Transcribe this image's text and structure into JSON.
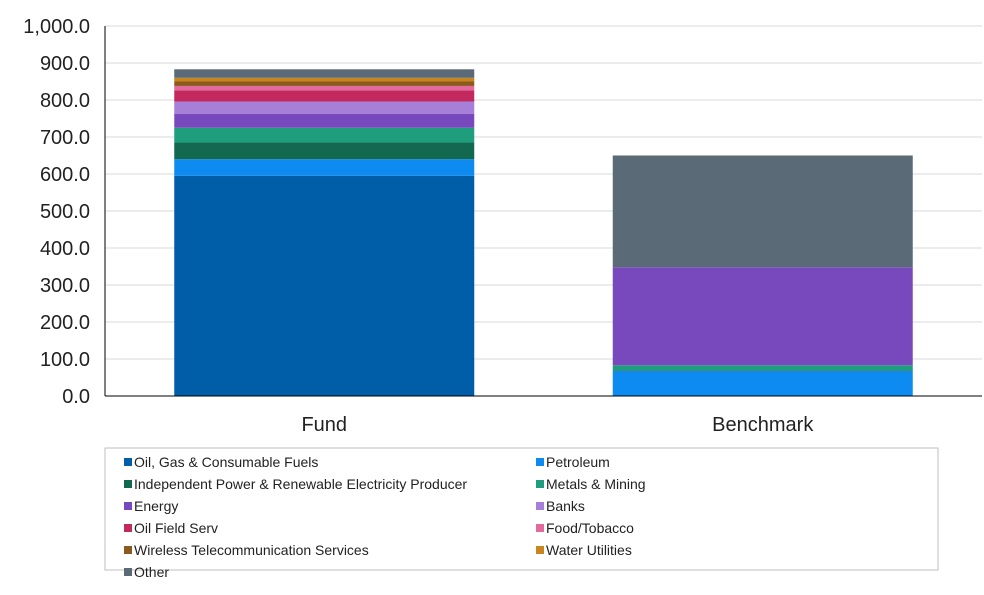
{
  "chart_data": {
    "type": "bar",
    "stacked": true,
    "title": "",
    "xlabel": "",
    "ylabel": "",
    "ylim": [
      0,
      1000
    ],
    "yticks": [
      0,
      100,
      200,
      300,
      400,
      500,
      600,
      700,
      800,
      900,
      1000
    ],
    "ytick_labels": [
      "0.0",
      "100.0",
      "200.0",
      "300.0",
      "400.0",
      "500.0",
      "600.0",
      "700.0",
      "800.0",
      "900.0",
      "1,000.0"
    ],
    "grid": true,
    "legend_position": "bottom",
    "categories": [
      "Fund",
      "Benchmark"
    ],
    "series": [
      {
        "name": "Oil, Gas & Consumable Fuels",
        "color": "#005EA8",
        "values": [
          595,
          0
        ]
      },
      {
        "name": "Petroleum",
        "color": "#0D8BF0",
        "values": [
          45,
          68
        ]
      },
      {
        "name": "Independent Power & Renewable Electricity Producer",
        "color": "#13694F",
        "values": [
          45,
          2
        ]
      },
      {
        "name": "Metals & Mining",
        "color": "#1E9E7D",
        "values": [
          40,
          13
        ]
      },
      {
        "name": "Energy",
        "color": "#7849BD",
        "values": [
          38,
          265
        ]
      },
      {
        "name": "Banks",
        "color": "#A67FD9",
        "values": [
          33,
          0
        ]
      },
      {
        "name": "Oil Field Serv",
        "color": "#C3285E",
        "values": [
          30,
          0
        ]
      },
      {
        "name": "Food/Tobacco",
        "color": "#E36A9C",
        "values": [
          12,
          0
        ]
      },
      {
        "name": "Wireless Telecommunication Services",
        "color": "#8A5A1F",
        "values": [
          12,
          0
        ]
      },
      {
        "name": "Water Utilities",
        "color": "#C9851F",
        "values": [
          10,
          0
        ]
      },
      {
        "name": "Other",
        "color": "#5A6A77",
        "values": [
          23,
          302
        ]
      }
    ]
  }
}
